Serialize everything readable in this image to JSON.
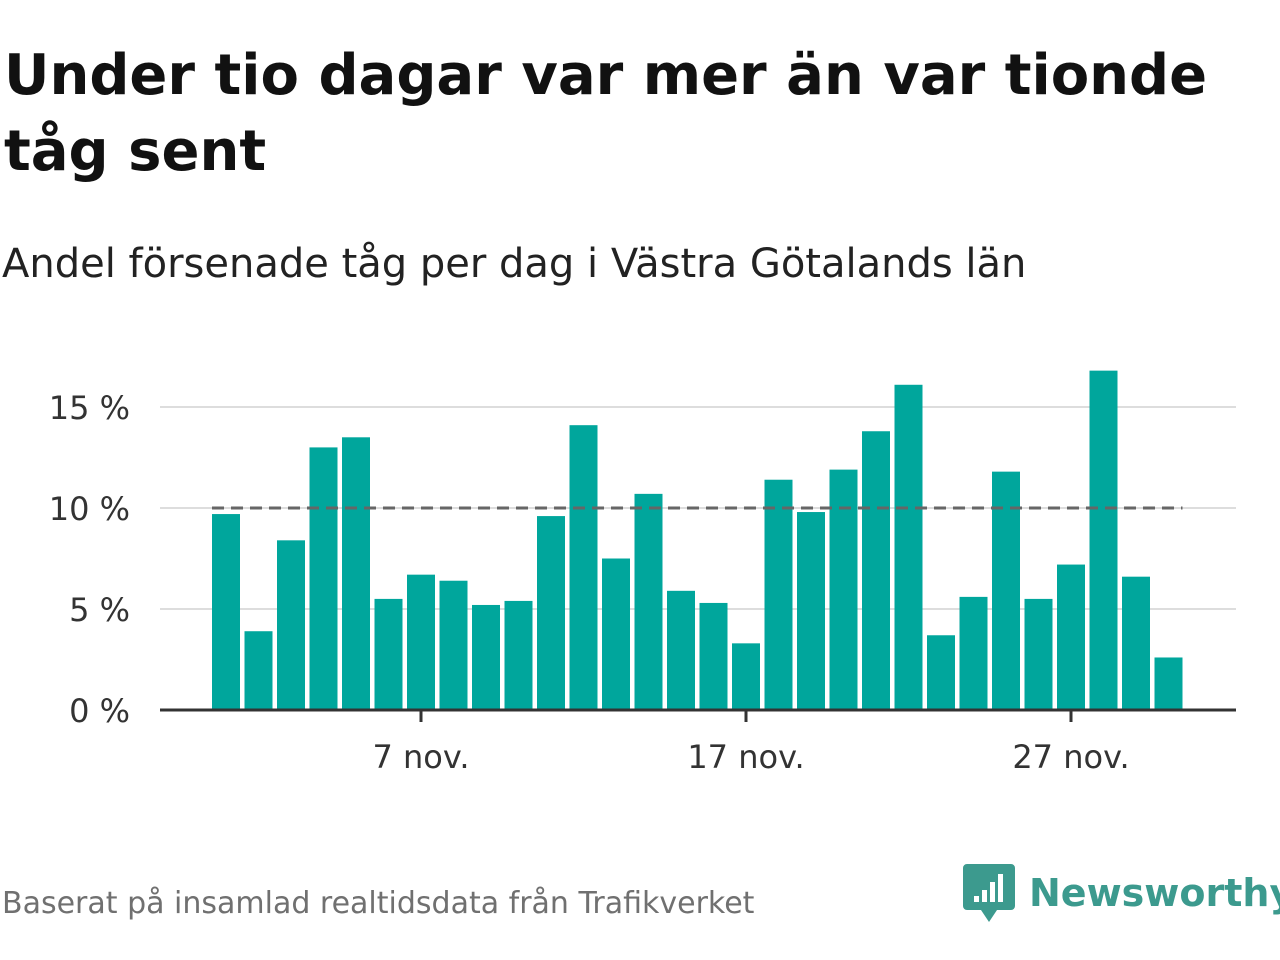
{
  "title": "Under tio dagar var mer än var tionde tåg sent",
  "subtitle": "Andel försenade tåg per dag i Västra Götalands län",
  "source": "Baserat på insamlad realtidsdata från Trafikverket",
  "brand": {
    "name": "Newsworthy",
    "icon": "newsworthy-logo-icon",
    "color": "#3c9a8e"
  },
  "colors": {
    "bar": "#00a69c",
    "reference_line": "#666666",
    "grid": "#dddddd",
    "axis": "#333333"
  },
  "chart_data": {
    "type": "bar",
    "x_unit": "day of November",
    "x": [
      1,
      2,
      3,
      4,
      5,
      6,
      7,
      8,
      9,
      10,
      11,
      12,
      13,
      14,
      15,
      16,
      17,
      18,
      19,
      20,
      21,
      22,
      23,
      24,
      25,
      26,
      27,
      28,
      29,
      30
    ],
    "values": [
      9.7,
      3.9,
      8.4,
      13.0,
      13.5,
      5.5,
      6.7,
      6.4,
      5.2,
      5.4,
      9.6,
      14.1,
      7.5,
      10.7,
      5.9,
      5.3,
      3.3,
      11.4,
      9.8,
      11.9,
      13.8,
      16.1,
      3.7,
      5.6,
      11.8,
      5.5,
      7.2,
      16.8,
      6.6,
      2.6
    ],
    "reference_line": 10,
    "ylim": [
      0,
      17
    ],
    "yticks": [
      0,
      5,
      10,
      15
    ],
    "ytick_labels": [
      "0 %",
      "5 %",
      "10 %",
      "15 %"
    ],
    "xticks": [
      7,
      17,
      27
    ],
    "xtick_labels": [
      "7 nov.",
      "17 nov.",
      "27 nov."
    ],
    "grid": true
  }
}
